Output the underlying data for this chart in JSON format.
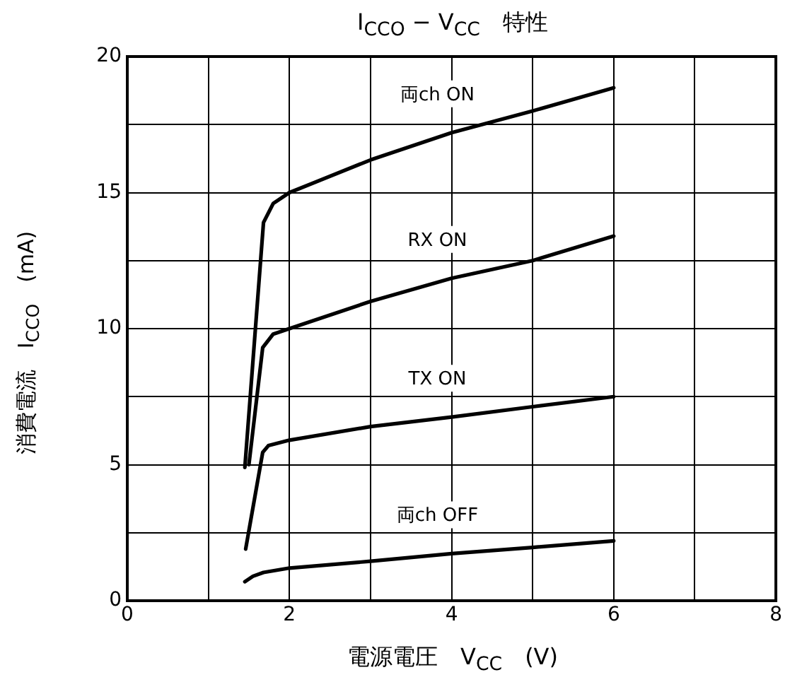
{
  "chart_data": {
    "type": "line",
    "title": "I$_{CCO}$ − V$_{CC}$　特性",
    "xlabel": "電源電圧　V$_{CC}$　(V)",
    "ylabel": "消費電流　I$_{CCO}$　(mA)",
    "xlim": [
      0,
      8
    ],
    "ylim": [
      0,
      20
    ],
    "xticks": [
      0,
      {
        "value": 1,
        "label": null
      },
      2,
      {
        "value": 3,
        "label": null
      },
      4,
      {
        "value": 5,
        "label": null
      },
      6,
      {
        "value": 7,
        "label": null
      },
      8
    ],
    "yticks": [
      0,
      {
        "value": 2.5,
        "label": null
      },
      5,
      {
        "value": 7.5,
        "label": null
      },
      10,
      {
        "value": 12.5,
        "label": null
      },
      15,
      {
        "value": 17.5,
        "label": null
      },
      20
    ],
    "grid": true,
    "legend": false,
    "marker": "none",
    "line_style": "solid",
    "series": [
      {
        "name": "両ch ON",
        "color": "#000000",
        "x": [
          1.45,
          1.68,
          1.8,
          2.0,
          3.0,
          4.0,
          5.0,
          6.0
        ],
        "values": [
          4.9,
          13.9,
          14.6,
          15.0,
          16.2,
          17.2,
          18.0,
          18.85
        ]
      },
      {
        "name": "RX ON",
        "color": "#000000",
        "x": [
          1.5,
          1.67,
          1.8,
          2.0,
          3.0,
          4.0,
          5.0,
          6.0
        ],
        "values": [
          5.0,
          9.3,
          9.8,
          10.0,
          11.0,
          11.85,
          12.5,
          13.4
        ]
      },
      {
        "name": "TX ON",
        "color": "#000000",
        "x": [
          1.46,
          1.67,
          1.74,
          2.0,
          3.0,
          4.0,
          5.0,
          6.0
        ],
        "values": [
          1.9,
          5.45,
          5.7,
          5.9,
          6.4,
          6.75,
          7.13,
          7.5
        ]
      },
      {
        "name": "両ch OFF",
        "color": "#000000",
        "x": [
          1.45,
          1.55,
          1.68,
          2.0,
          3.0,
          4.0,
          5.0,
          6.0
        ],
        "values": [
          0.7,
          0.9,
          1.04,
          1.2,
          1.45,
          1.73,
          1.96,
          2.2
        ]
      }
    ]
  }
}
